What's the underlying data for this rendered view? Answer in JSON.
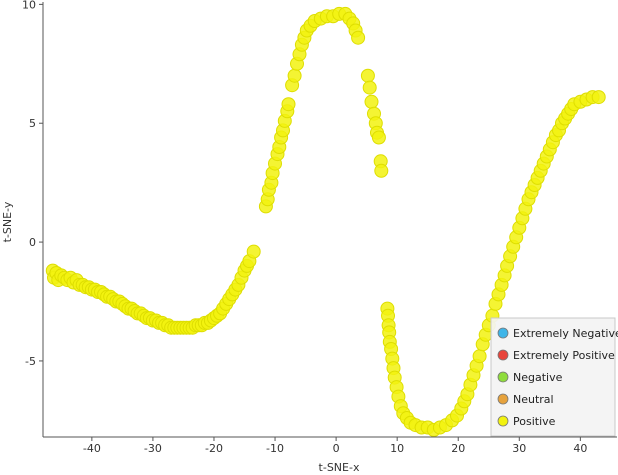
{
  "chart_data": {
    "type": "scatter",
    "xlabel": "t-SNE-x",
    "ylabel": "t-SNE-y",
    "xlim": [
      -48,
      46
    ],
    "ylim": [
      -8.2,
      10.1
    ],
    "xticks": [
      -40,
      -30,
      -20,
      -10,
      0,
      10,
      20,
      30,
      40
    ],
    "yticks": [
      -5,
      0,
      5,
      10
    ],
    "legend_position": "bottom-right",
    "legend": [
      {
        "name": "Extremely Negative",
        "color": "#3fb5e8"
      },
      {
        "name": "Extremely Positive",
        "color": "#e8453c"
      },
      {
        "name": "Negative",
        "color": "#8fdc3c"
      },
      {
        "name": "Neutral",
        "color": "#e6a23c"
      },
      {
        "name": "Positive",
        "color": "#f2f20f"
      }
    ],
    "series": [
      {
        "name": "Positive",
        "color": "#f2f20f",
        "points": [
          [
            -46.4,
            -1.2
          ],
          [
            -46.2,
            -1.5
          ],
          [
            -45.8,
            -1.3
          ],
          [
            -45.5,
            -1.6
          ],
          [
            -45.0,
            -1.4
          ],
          [
            -44.5,
            -1.5
          ],
          [
            -44.0,
            -1.6
          ],
          [
            -43.5,
            -1.5
          ],
          [
            -43.0,
            -1.7
          ],
          [
            -42.5,
            -1.6
          ],
          [
            -42.0,
            -1.8
          ],
          [
            -41.5,
            -1.8
          ],
          [
            -41.0,
            -1.9
          ],
          [
            -40.5,
            -1.9
          ],
          [
            -40.0,
            -2.0
          ],
          [
            -39.5,
            -2.0
          ],
          [
            -39.0,
            -2.1
          ],
          [
            -38.5,
            -2.1
          ],
          [
            -38.0,
            -2.2
          ],
          [
            -37.5,
            -2.3
          ],
          [
            -37.0,
            -2.3
          ],
          [
            -36.5,
            -2.4
          ],
          [
            -36.0,
            -2.5
          ],
          [
            -35.5,
            -2.5
          ],
          [
            -35.0,
            -2.6
          ],
          [
            -34.5,
            -2.7
          ],
          [
            -34.0,
            -2.8
          ],
          [
            -33.5,
            -2.8
          ],
          [
            -33.0,
            -2.9
          ],
          [
            -32.5,
            -3.0
          ],
          [
            -32.0,
            -3.0
          ],
          [
            -31.5,
            -3.1
          ],
          [
            -31.0,
            -3.2
          ],
          [
            -30.5,
            -3.2
          ],
          [
            -30.0,
            -3.3
          ],
          [
            -29.5,
            -3.3
          ],
          [
            -29.0,
            -3.4
          ],
          [
            -28.5,
            -3.4
          ],
          [
            -28.0,
            -3.5
          ],
          [
            -27.5,
            -3.5
          ],
          [
            -27.0,
            -3.6
          ],
          [
            -26.5,
            -3.6
          ],
          [
            -26.0,
            -3.6
          ],
          [
            -25.5,
            -3.6
          ],
          [
            -25.0,
            -3.6
          ],
          [
            -24.5,
            -3.6
          ],
          [
            -24.0,
            -3.6
          ],
          [
            -23.5,
            -3.6
          ],
          [
            -23.0,
            -3.5
          ],
          [
            -22.5,
            -3.5
          ],
          [
            -22.0,
            -3.5
          ],
          [
            -21.5,
            -3.4
          ],
          [
            -21.0,
            -3.4
          ],
          [
            -20.5,
            -3.3
          ],
          [
            -20.0,
            -3.2
          ],
          [
            -19.5,
            -3.1
          ],
          [
            -19.0,
            -3.0
          ],
          [
            -18.5,
            -2.8
          ],
          [
            -18.0,
            -2.6
          ],
          [
            -17.5,
            -2.4
          ],
          [
            -17.0,
            -2.2
          ],
          [
            -16.5,
            -2.0
          ],
          [
            -16.0,
            -1.8
          ],
          [
            -15.5,
            -1.5
          ],
          [
            -15.0,
            -1.2
          ],
          [
            -14.6,
            -1.0
          ],
          [
            -14.2,
            -0.8
          ],
          [
            -13.5,
            -0.4
          ],
          [
            -11.5,
            1.5
          ],
          [
            -11.2,
            1.8
          ],
          [
            -11.0,
            2.2
          ],
          [
            -10.6,
            2.5
          ],
          [
            -10.4,
            2.9
          ],
          [
            -10.0,
            3.3
          ],
          [
            -9.6,
            3.7
          ],
          [
            -9.3,
            4.0
          ],
          [
            -9.0,
            4.4
          ],
          [
            -8.7,
            4.7
          ],
          [
            -8.4,
            5.1
          ],
          [
            -8.0,
            5.5
          ],
          [
            -7.8,
            5.8
          ],
          [
            -7.2,
            6.6
          ],
          [
            -6.8,
            7.0
          ],
          [
            -6.4,
            7.5
          ],
          [
            -6.0,
            7.9
          ],
          [
            -5.6,
            8.3
          ],
          [
            -5.2,
            8.6
          ],
          [
            -4.8,
            8.9
          ],
          [
            -4.2,
            9.1
          ],
          [
            -3.5,
            9.3
          ],
          [
            -2.5,
            9.4
          ],
          [
            -1.5,
            9.5
          ],
          [
            -0.5,
            9.5
          ],
          [
            0.5,
            9.6
          ],
          [
            1.5,
            9.6
          ],
          [
            2.2,
            9.4
          ],
          [
            2.8,
            9.2
          ],
          [
            3.2,
            8.9
          ],
          [
            3.6,
            8.6
          ],
          [
            5.2,
            7.0
          ],
          [
            5.5,
            6.5
          ],
          [
            5.8,
            5.9
          ],
          [
            6.2,
            5.4
          ],
          [
            6.5,
            5.0
          ],
          [
            6.7,
            4.6
          ],
          [
            7.0,
            4.4
          ],
          [
            7.3,
            3.4
          ],
          [
            7.4,
            3.0
          ],
          [
            8.4,
            -2.8
          ],
          [
            8.5,
            -3.1
          ],
          [
            8.6,
            -3.5
          ],
          [
            8.7,
            -3.8
          ],
          [
            8.8,
            -4.2
          ],
          [
            9.0,
            -4.5
          ],
          [
            9.2,
            -4.9
          ],
          [
            9.4,
            -5.3
          ],
          [
            9.6,
            -5.7
          ],
          [
            9.9,
            -6.1
          ],
          [
            10.2,
            -6.5
          ],
          [
            10.6,
            -6.9
          ],
          [
            11.0,
            -7.2
          ],
          [
            11.6,
            -7.4
          ],
          [
            12.2,
            -7.6
          ],
          [
            13.0,
            -7.7
          ],
          [
            14.0,
            -7.8
          ],
          [
            15.0,
            -7.8
          ],
          [
            16.0,
            -7.9
          ],
          [
            17.0,
            -7.8
          ],
          [
            18.0,
            -7.7
          ],
          [
            19.0,
            -7.5
          ],
          [
            19.8,
            -7.3
          ],
          [
            20.5,
            -7.0
          ],
          [
            21.0,
            -6.7
          ],
          [
            21.5,
            -6.4
          ],
          [
            22.0,
            -6.0
          ],
          [
            22.5,
            -5.6
          ],
          [
            23.0,
            -5.2
          ],
          [
            23.5,
            -4.8
          ],
          [
            24.0,
            -4.3
          ],
          [
            24.5,
            -3.9
          ],
          [
            25.0,
            -3.5
          ],
          [
            25.6,
            -3.1
          ],
          [
            26.1,
            -2.6
          ],
          [
            26.6,
            -2.2
          ],
          [
            27.1,
            -1.8
          ],
          [
            27.6,
            -1.4
          ],
          [
            28.0,
            -1.0
          ],
          [
            28.5,
            -0.6
          ],
          [
            29.0,
            -0.2
          ],
          [
            29.5,
            0.2
          ],
          [
            30.0,
            0.6
          ],
          [
            30.5,
            1.0
          ],
          [
            31.0,
            1.4
          ],
          [
            31.5,
            1.8
          ],
          [
            32.0,
            2.1
          ],
          [
            32.5,
            2.4
          ],
          [
            33.0,
            2.7
          ],
          [
            33.5,
            3.0
          ],
          [
            34.0,
            3.3
          ],
          [
            34.5,
            3.6
          ],
          [
            35.0,
            3.9
          ],
          [
            35.5,
            4.2
          ],
          [
            36.0,
            4.5
          ],
          [
            36.5,
            4.7
          ],
          [
            37.0,
            5.0
          ],
          [
            37.5,
            5.2
          ],
          [
            38.0,
            5.4
          ],
          [
            38.5,
            5.6
          ],
          [
            39.0,
            5.8
          ],
          [
            40.0,
            5.9
          ],
          [
            41.0,
            6.0
          ],
          [
            42.0,
            6.1
          ],
          [
            43.0,
            6.1
          ]
        ]
      }
    ]
  }
}
